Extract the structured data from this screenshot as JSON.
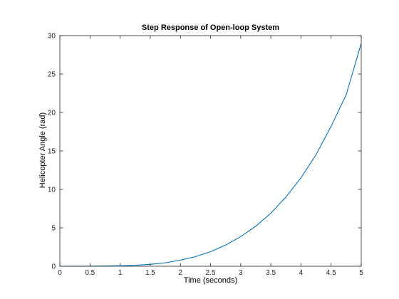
{
  "chart_data": {
    "type": "line",
    "title": "Step Response of Open-loop System",
    "xlabel": "Time (seconds)",
    "ylabel": "Helicopter Angle (rad)",
    "xlim": [
      0,
      5
    ],
    "ylim": [
      0,
      30
    ],
    "xticks": [
      0,
      0.5,
      1,
      1.5,
      2,
      2.5,
      3,
      3.5,
      4,
      4.5,
      5
    ],
    "yticks": [
      0,
      5,
      10,
      15,
      20,
      25,
      30
    ],
    "xtick_labels": [
      "0",
      "0.5",
      "1",
      "1.5",
      "2",
      "2.5",
      "3",
      "3.5",
      "4",
      "4.5",
      "5"
    ],
    "ytick_labels": [
      "0",
      "5",
      "10",
      "15",
      "20",
      "25",
      "30"
    ],
    "grid": false,
    "legend": "none",
    "series": [
      {
        "color": "#0072bd",
        "x": [
          0,
          0.5,
          1,
          1.25,
          1.5,
          1.75,
          2,
          2.25,
          2.5,
          2.75,
          3,
          3.25,
          3.5,
          3.75,
          4,
          4.25,
          4.5,
          4.75,
          5
        ],
        "y": [
          0,
          0.01,
          0.06,
          0.12,
          0.25,
          0.45,
          0.8,
          1.25,
          1.9,
          2.75,
          3.85,
          5.2,
          6.9,
          9.0,
          11.5,
          14.5,
          18.2,
          22.3,
          29.0
        ]
      }
    ]
  }
}
